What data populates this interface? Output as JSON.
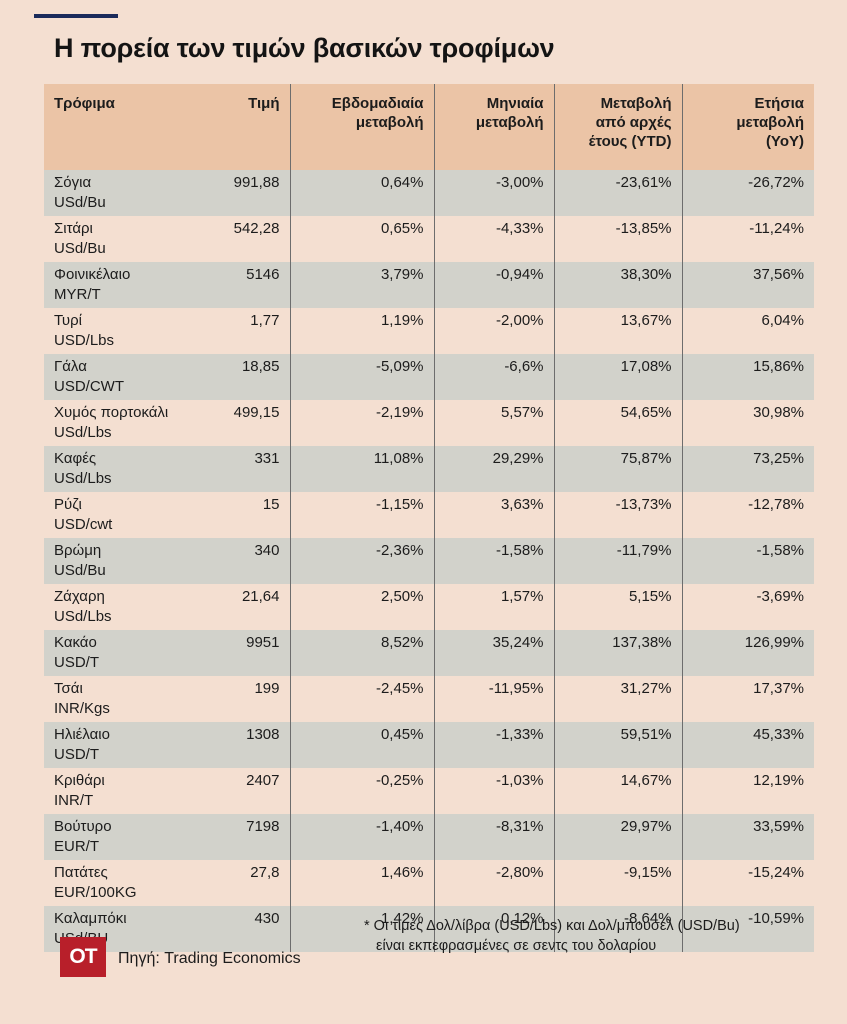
{
  "title": "Η πορεία των τιμών βασικών τροφίμων",
  "table": {
    "headers": {
      "food": [
        "Τρόφιμα"
      ],
      "price": [
        "Τιμή"
      ],
      "weekly": [
        "Εβδομαδιαία",
        "μεταβολή"
      ],
      "monthly": [
        "Μηνιαία",
        "μεταβολή"
      ],
      "ytd": [
        "Μεταβολή",
        "από αρχές",
        "έτους (YTD)"
      ],
      "yoy": [
        "Ετήσια",
        "μεταβολή",
        "(YoY)"
      ]
    },
    "rows": [
      {
        "name": "Σόγια",
        "unit": "USd/Bu",
        "price": "991,88",
        "weekly": "0,64%",
        "monthly": "-3,00%",
        "ytd": "-23,61%",
        "yoy": "-26,72%"
      },
      {
        "name": "Σιτάρι",
        "unit": "USd/Bu",
        "price": "542,28",
        "weekly": "0,65%",
        "monthly": "-4,33%",
        "ytd": "-13,85%",
        "yoy": "-11,24%"
      },
      {
        "name": "Φοινικέλαιο",
        "unit": "MYR/T",
        "price": "5146",
        "weekly": "3,79%",
        "monthly": "-0,94%",
        "ytd": "38,30%",
        "yoy": "37,56%"
      },
      {
        "name": "Τυρί",
        "unit": "USD/Lbs",
        "price": "1,77",
        "weekly": "1,19%",
        "monthly": "-2,00%",
        "ytd": "13,67%",
        "yoy": "6,04%"
      },
      {
        "name": "Γάλα",
        "unit": "USD/CWT",
        "price": "18,85",
        "weekly": "-5,09%",
        "monthly": "-6,6%",
        "ytd": "17,08%",
        "yoy": "15,86%"
      },
      {
        "name": "Χυμός πορτοκάλι",
        "unit": "USd/Lbs",
        "price": "499,15",
        "weekly": "-2,19%",
        "monthly": "5,57%",
        "ytd": "54,65%",
        "yoy": "30,98%"
      },
      {
        "name": "Καφές",
        "unit": "USd/Lbs",
        "price": "331",
        "weekly": "11,08%",
        "monthly": "29,29%",
        "ytd": "75,87%",
        "yoy": "73,25%"
      },
      {
        "name": "Ρύζι",
        "unit": "USD/cwt",
        "price": "15",
        "weekly": "-1,15%",
        "monthly": "3,63%",
        "ytd": "-13,73%",
        "yoy": "-12,78%"
      },
      {
        "name": "Βρώμη",
        "unit": "USd/Bu",
        "price": "340",
        "weekly": "-2,36%",
        "monthly": "-1,58%",
        "ytd": "-11,79%",
        "yoy": "-1,58%"
      },
      {
        "name": "Ζάχαρη",
        "unit": "USd/Lbs",
        "price": "21,64",
        "weekly": "2,50%",
        "monthly": "1,57%",
        "ytd": "5,15%",
        "yoy": "-3,69%"
      },
      {
        "name": "Κακάο",
        "unit": "USD/T",
        "price": "9951",
        "weekly": "8,52%",
        "monthly": "35,24%",
        "ytd": "137,38%",
        "yoy": "126,99%"
      },
      {
        "name": "Τσάι",
        "unit": "INR/Kgs",
        "price": "199",
        "weekly": "-2,45%",
        "monthly": "-11,95%",
        "ytd": "31,27%",
        "yoy": "17,37%"
      },
      {
        "name": "Ηλιέλαιο",
        "unit": "USD/T",
        "price": "1308",
        "weekly": "0,45%",
        "monthly": "-1,33%",
        "ytd": "59,51%",
        "yoy": "45,33%"
      },
      {
        "name": "Κριθάρι",
        "unit": "INR/T",
        "price": "2407",
        "weekly": "-0,25%",
        "monthly": "-1,03%",
        "ytd": "14,67%",
        "yoy": "12,19%"
      },
      {
        "name": "Βούτυρο",
        "unit": "EUR/T",
        "price": "7198",
        "weekly": "-1,40%",
        "monthly": "-8,31%",
        "ytd": "29,97%",
        "yoy": "33,59%"
      },
      {
        "name": "Πατάτες",
        "unit": "EUR/100KG",
        "price": "27,8",
        "weekly": "1,46%",
        "monthly": "-2,80%",
        "ytd": "-9,15%",
        "yoy": "-15,24%"
      },
      {
        "name": "Καλαμπόκι",
        "unit": "USd/BU",
        "price": "430",
        "weekly": "1,42%",
        "monthly": "0,12%",
        "ytd": "-8,64%",
        "yoy": "-10,59%"
      }
    ]
  },
  "footnote": {
    "line1": "* Οι τιμές Δολ/λίβρα (USD/Lbs) και Δολ/μπουσέλ (USD/Bu)",
    "line2": "είναι εκπεφρασμένες σε σεντς του δολαρίου"
  },
  "logo_text": "OT",
  "source": "Πηγή: Trading Economics",
  "colors": {
    "background": "#f4dfd1",
    "header_fill": "#ebc4a6",
    "row_stripe": "#d2d2cb",
    "logo": "#b81f2a",
    "top_rule": "#1a2a5a"
  }
}
